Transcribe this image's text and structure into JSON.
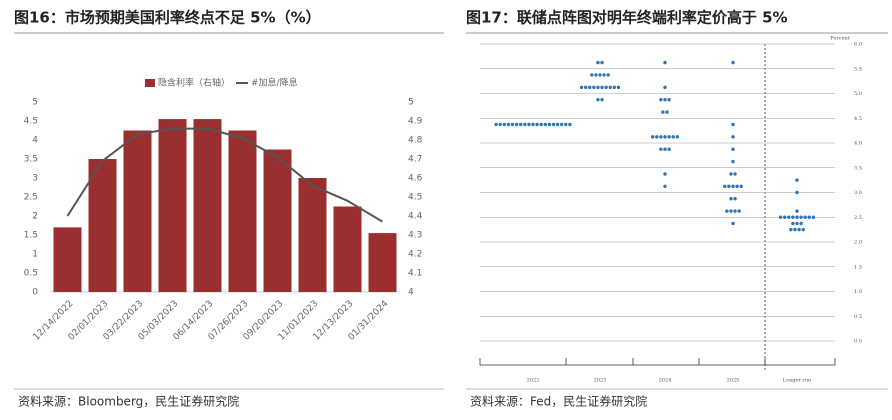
{
  "charts": [
    {
      "title": "图16：市场预期美国利率终点不足 5%（%）",
      "source": "资料来源：Bloomberg，民生证券研究院",
      "chart_data": {
        "type": "bar",
        "categories": [
          "12/14/2022",
          "02/01/2023",
          "03/22/2023",
          "05/03/2023",
          "06/14/2023",
          "07/26/2023",
          "09/20/2023",
          "11/01/2023",
          "12/13/2023",
          "01/31/2024"
        ],
        "series": [
          {
            "name": "隐含利率（右轴）",
            "type": "bar",
            "axis": "y2",
            "color": "#9b2f2f",
            "values": [
              4.34,
              4.7,
              4.85,
              4.91,
              4.91,
              4.85,
              4.75,
              4.6,
              4.45,
              4.31
            ]
          },
          {
            "name": "#加息/降息",
            "type": "line",
            "color": "#555555",
            "values": [
              2.0,
              3.45,
              4.15,
              4.3,
              4.3,
              4.05,
              3.55,
              2.8,
              2.4,
              1.85
            ]
          }
        ],
        "ylim": [
          0,
          5
        ],
        "yticks": [
          0,
          0.5,
          1,
          1.5,
          2,
          2.5,
          3,
          3.5,
          4,
          4.5,
          5
        ],
        "y2lim": [
          4,
          5
        ],
        "y2ticks": [
          4,
          4.1,
          4.2,
          4.3,
          4.4,
          4.5,
          4.6,
          4.7,
          4.8,
          4.9,
          5
        ]
      }
    },
    {
      "title": "图17：联储点阵图对明年终端利率定价高于 5%",
      "source": "资料来源：Fed，民生证券研究院",
      "chart_data": {
        "type": "dot",
        "y_axis_label": "Percent",
        "categories": [
          "2022",
          "2023",
          "2024",
          "2025",
          "Longer run"
        ],
        "color": "#2e75b6",
        "dots": [
          [
            {
              "rate": 4.375,
              "count": 19
            }
          ],
          [
            {
              "rate": 5.625,
              "count": 2
            },
            {
              "rate": 5.375,
              "count": 5
            },
            {
              "rate": 5.125,
              "count": 10
            },
            {
              "rate": 4.875,
              "count": 2
            }
          ],
          [
            {
              "rate": 5.625,
              "count": 1
            },
            {
              "rate": 5.125,
              "count": 1
            },
            {
              "rate": 4.875,
              "count": 3
            },
            {
              "rate": 4.625,
              "count": 2
            },
            {
              "rate": 4.125,
              "count": 7
            },
            {
              "rate": 3.875,
              "count": 3
            },
            {
              "rate": 3.375,
              "count": 1
            },
            {
              "rate": 3.125,
              "count": 1
            }
          ],
          [
            {
              "rate": 5.625,
              "count": 1
            },
            {
              "rate": 4.375,
              "count": 1
            },
            {
              "rate": 4.125,
              "count": 1
            },
            {
              "rate": 3.875,
              "count": 1
            },
            {
              "rate": 3.625,
              "count": 1
            },
            {
              "rate": 3.375,
              "count": 2
            },
            {
              "rate": 3.125,
              "count": 5
            },
            {
              "rate": 2.875,
              "count": 2
            },
            {
              "rate": 2.625,
              "count": 4
            },
            {
              "rate": 2.375,
              "count": 1
            }
          ],
          [
            {
              "rate": 3.25,
              "count": 1
            },
            {
              "rate": 3.0,
              "count": 1
            },
            {
              "rate": 2.625,
              "count": 1
            },
            {
              "rate": 2.5,
              "count": 9
            },
            {
              "rate": 2.375,
              "count": 3
            },
            {
              "rate": 2.25,
              "count": 4
            }
          ]
        ],
        "ylim": [
          0,
          6
        ],
        "yticks": [
          {
            "value": 0,
            "label": "0.0"
          },
          0.5,
          {
            "value": 1,
            "label": "1.0"
          },
          1.5,
          {
            "value": 2,
            "label": "2.0"
          },
          2.5,
          {
            "value": 3,
            "label": "3.0"
          },
          3.5,
          {
            "value": 4,
            "label": "4.0"
          },
          4.5,
          {
            "value": 5,
            "label": "5.0"
          },
          5.5,
          {
            "value": 6,
            "label": "6.0"
          }
        ]
      }
    }
  ]
}
